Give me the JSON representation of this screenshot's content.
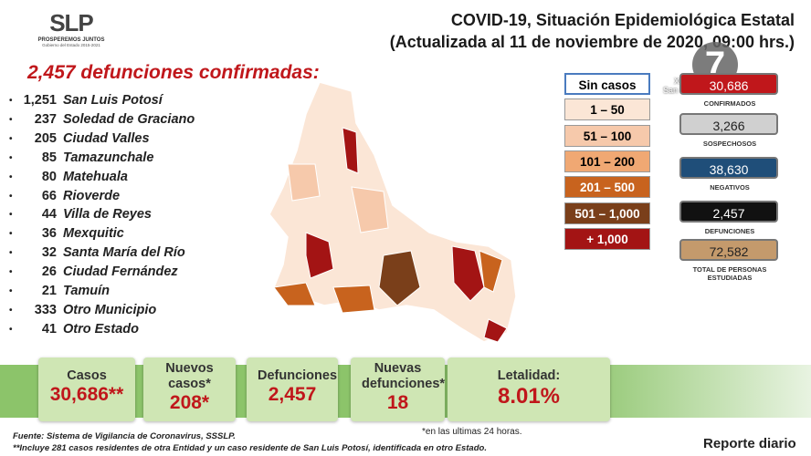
{
  "header": {
    "logo": "SLP",
    "logo_motto": "PROSPEREMOS JUNTOS",
    "logo_sub": "Gobierno del Estado 2015-2021",
    "title": "COVID-19, Situación Epidemiológica Estatal",
    "subtitle": "(Actualizada al 11 de noviembre de 2020, 09:00 hrs.)"
  },
  "headline": "2,457 defunciones confirmadas:",
  "deaths_list": [
    [
      "1,251",
      "San Luis Potosí"
    ],
    [
      "237",
      "Soledad de Graciano"
    ],
    [
      "205",
      "Ciudad Valles"
    ],
    [
      "85",
      "Tamazunchale"
    ],
    [
      "80",
      "Matehuala"
    ],
    [
      "66",
      "Rioverde"
    ],
    [
      "44",
      "Villa de Reyes"
    ],
    [
      "36",
      "Mexquitic"
    ],
    [
      "32",
      "Santa María del Río"
    ],
    [
      "26",
      "Ciudad Fernández"
    ],
    [
      "21",
      "Tamuín"
    ],
    [
      "333",
      "Otro Municipio"
    ],
    [
      "41",
      "Otro Estado"
    ]
  ],
  "legend": [
    {
      "label": "Sin casos",
      "color": "#ffffff"
    },
    {
      "label": "1 – 50",
      "color": "#fbe6d6"
    },
    {
      "label": "51 – 100",
      "color": "#f6c9ab"
    },
    {
      "label": "101 – 200",
      "color": "#f0a873"
    },
    {
      "label": "201 – 500",
      "color": "#c8631e"
    },
    {
      "label": "501 – 1,000",
      "color": "#7a3f1a"
    },
    {
      "label": "+ 1,000",
      "color": "#a31414"
    }
  ],
  "stats": [
    {
      "value": "30,686",
      "label": "CONFIRMADOS",
      "color": "#c0171b"
    },
    {
      "value": "3,266",
      "label": "SOSPECHOSOS",
      "color": "#d0d0d0"
    },
    {
      "value": "38,630",
      "label": "NEGATIVOS",
      "color": "#1f4e79"
    },
    {
      "value": "2,457",
      "label": "DEFUNCIONES",
      "color": "#111111"
    },
    {
      "value": "72,582",
      "label": "TOTAL DE PERSONAS ESTUDIADAS",
      "color": "#c49a6c"
    }
  ],
  "watermark": {
    "channel": "XHSLV",
    "place": "San Luis Potosí SLP",
    "logo": "7"
  },
  "summary": [
    {
      "label": "Casos",
      "value": "30,686**"
    },
    {
      "label": "Nuevos casos*",
      "value": "208*"
    },
    {
      "label": "Defunciones",
      "value": "2,457"
    },
    {
      "label": "Nuevas defunciones*",
      "value": "18"
    },
    {
      "label": "Letalidad:",
      "value": "8.01%"
    }
  ],
  "note": "*en las ultimas 24 horas.",
  "footnotes": [
    "Fuente: Sistema de Vigilancia de Coronavirus, SSSLP.",
    "**Incluye 281 casos residentes de otra Entidad y un caso residente de San Luis Potosí, identificada en otro Estado."
  ],
  "footer": "Reporte diario"
}
